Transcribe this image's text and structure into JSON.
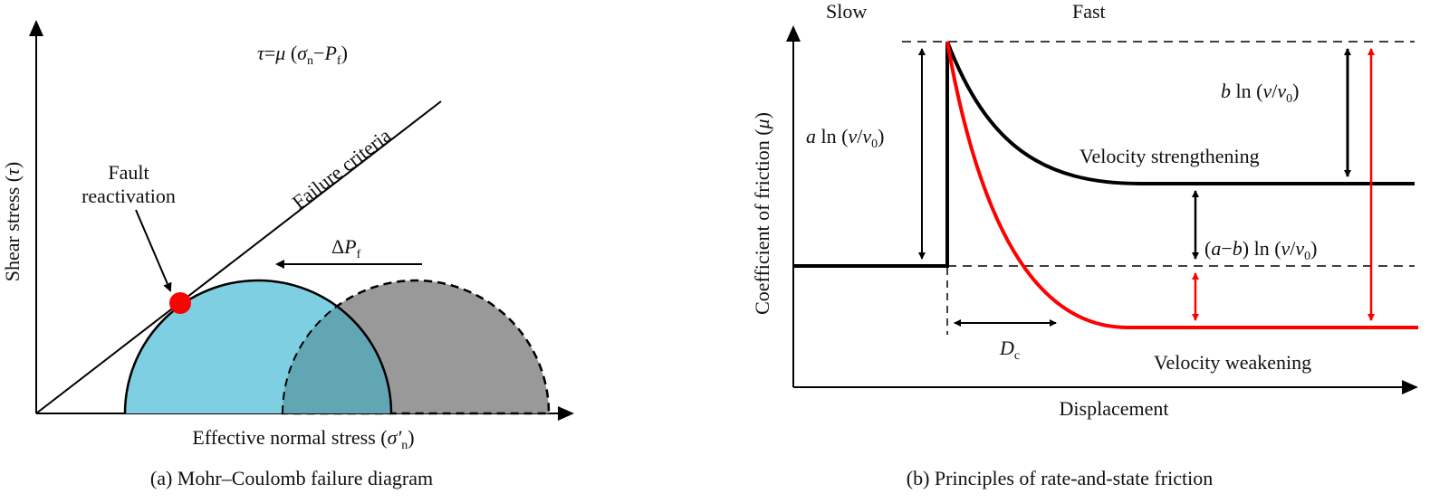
{
  "panel_a": {
    "equation": {
      "tau": "τ",
      "eq": "=",
      "mu": "μ",
      "open": " (",
      "sigma": "σ",
      "sub_n": "n",
      "minus": "−",
      "p": "P",
      "sub_f": "f",
      "close": ")"
    },
    "failure_criteria": "Failure criteria",
    "fault_line1": "Fault",
    "fault_line2": "reactivation",
    "delta_pf": {
      "delta": "Δ",
      "p": "P",
      "sub_f": "f"
    },
    "ylabel": {
      "text": "Shear stress (",
      "tau": "τ",
      "close": ")"
    },
    "xlabel": {
      "text": "Effective normal stress (",
      "sigma": "σ′",
      "sub_n": "n",
      "close": ")"
    },
    "caption": "(a) Mohr–Coulomb failure diagram",
    "colors": {
      "circle_blue": "#7ecfe1",
      "circle_gray": "#999999",
      "overlap": "#62a6b4",
      "point": "#ff0000"
    }
  },
  "panel_b": {
    "slow": "Slow",
    "fast": "Fast",
    "a_label": {
      "a": "a",
      "ln": " ln (",
      "v": "v",
      "slash": "/",
      "v0": "v",
      "sub0": "0",
      "close": ")"
    },
    "b_label": {
      "b": "b",
      "ln": " ln (",
      "v": "v",
      "slash": "/",
      "v0": "v",
      "sub0": "0",
      "close": ")"
    },
    "ab_label": {
      "open": "(",
      "a": "a",
      "minus": "−",
      "b": "b",
      "ln": ") ln (",
      "v": "v",
      "slash": "/",
      "v0": "v",
      "sub0": "0",
      "close": ")"
    },
    "strengthening": "Velocity strengthening",
    "weakening": "Velocity weakening",
    "dc": {
      "d": "D",
      "sub": "c"
    },
    "ylabel": {
      "text": "Coefficient of friction (",
      "mu": "μ",
      "close": ")"
    },
    "xlabel": "Displacement",
    "caption": "(b) Principles of rate-and-state friction",
    "colors": {
      "black_curve": "#000000",
      "red_curve": "#ff0000"
    }
  }
}
